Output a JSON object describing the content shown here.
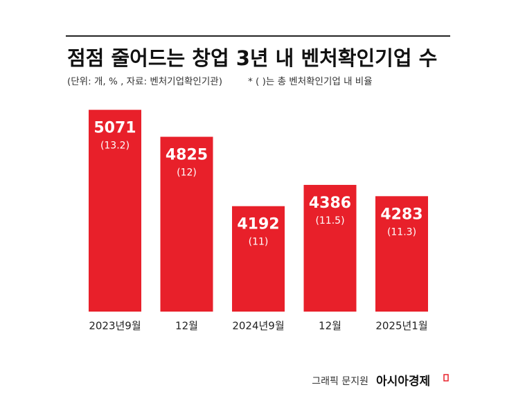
{
  "chart_data": {
    "type": "bar",
    "title": "점점 줄어드는 창업 3년 내 벤처확인기업 수",
    "subtitle": "(단위: 개, % , 자료: 벤처기업확인기관)",
    "note": "* ( )는 총 벤처확인기업 내 비율",
    "categories": [
      "2023년9월",
      "12월",
      "2024년9월",
      "12월",
      "2025년1월"
    ],
    "values": [
      5071,
      4825,
      4192,
      4386,
      4283
    ],
    "ratio": {
      "values": [
        13.2,
        12,
        11,
        11.5,
        11.3
      ],
      "value_labels": [
        "(13.2)",
        "(12)",
        "(11)",
        "(11.5)",
        "(11.3)"
      ]
    },
    "color": "#e8202a",
    "ylim": [
      3230,
      5100
    ],
    "credit": "그래픽 문지원",
    "source": "아시아경제"
  }
}
